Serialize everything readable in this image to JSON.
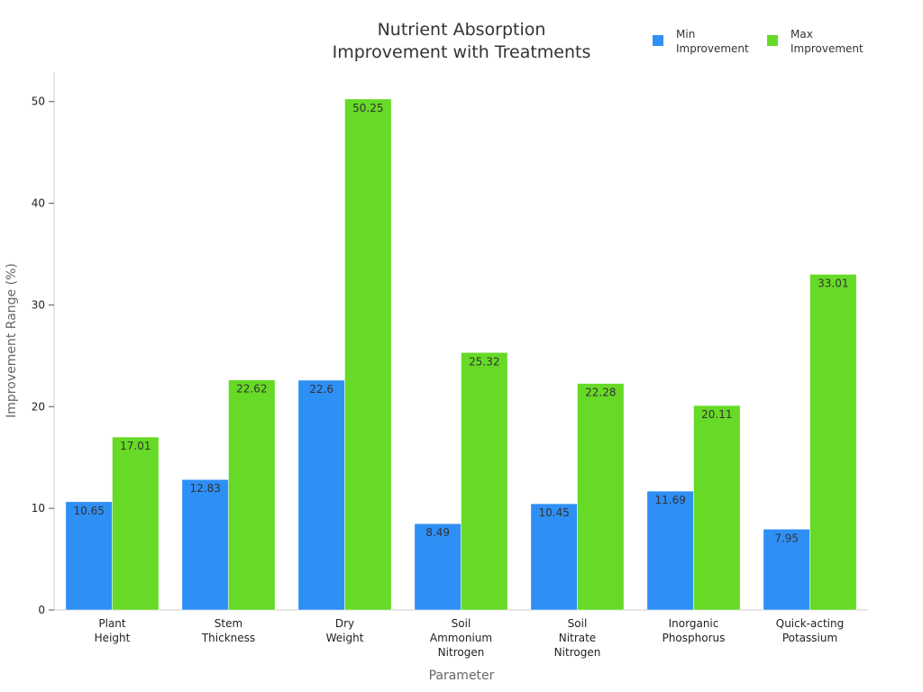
{
  "chart_data": {
    "type": "bar",
    "title": "Nutrient Absorption\nImprovement with Treatments",
    "x_label": "Parameter",
    "y_label": "Improvement Range (%)",
    "categories": [
      "Plant\nHeight",
      "Stem\nThickness",
      "Dry\nWeight",
      "Soil\nAmmonium\nNitrogen",
      "Soil\nNitrate\nNitrogen",
      "Inorganic\nPhosphorus",
      "Quick-acting\nPotassium"
    ],
    "series": [
      {
        "name": "Min\nImprovement",
        "color": "#2e8ff5",
        "values": [
          10.65,
          12.83,
          22.6,
          8.49,
          10.45,
          11.69,
          7.95
        ]
      },
      {
        "name": "Max\nImprovement",
        "color": "#66da26",
        "values": [
          17.01,
          22.62,
          50.25,
          25.32,
          22.28,
          20.11,
          33.01
        ]
      }
    ],
    "ylim": [
      0,
      52.9
    ],
    "yticks": [
      0,
      10,
      20,
      30,
      40,
      50
    ],
    "legend": "top-right"
  }
}
